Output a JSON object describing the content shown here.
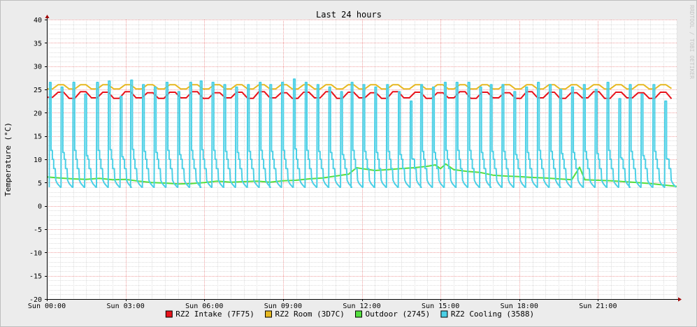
{
  "chart_data": {
    "type": "line",
    "title": "Last 24 hours",
    "ylabel": "Temperature (°C)",
    "watermark": "RRDTOOL / TOBI OETIKER",
    "ylim": [
      -20,
      40
    ],
    "y_major_ticks": [
      40,
      35,
      30,
      25,
      20,
      15,
      10,
      5,
      0,
      -5,
      -10,
      -15,
      -20
    ],
    "y_minor_step": 1,
    "x_hours_range": [
      0,
      24
    ],
    "x_major_ticks": [
      {
        "hour": 0,
        "label": "Sun 00:00"
      },
      {
        "hour": 3,
        "label": "Sun 03:00"
      },
      {
        "hour": 6,
        "label": "Sun 06:00"
      },
      {
        "hour": 9,
        "label": "Sun 09:00"
      },
      {
        "hour": 12,
        "label": "Sun 12:00"
      },
      {
        "hour": 15,
        "label": "Sun 15:00"
      },
      {
        "hour": 18,
        "label": "Sun 18:00"
      },
      {
        "hour": 21,
        "label": "Sun 21:00"
      }
    ],
    "x_minor_step_minutes": 30,
    "legend_position": "bottom",
    "grid": true,
    "series": [
      {
        "name": "RZ2 Intake (7F75)",
        "color": "#e8121a",
        "x": [
          0.0,
          0.43,
          0.85,
          1.28,
          1.7,
          2.13,
          2.55,
          2.98,
          3.4,
          3.83,
          4.25,
          4.68,
          5.1,
          5.53,
          5.95,
          6.38,
          6.8,
          7.23,
          7.65,
          8.08,
          8.5,
          8.93,
          9.35,
          9.78,
          10.2,
          10.63,
          11.05,
          11.48,
          11.9,
          12.33,
          12.75,
          13.18,
          13.6,
          14.03,
          14.45,
          14.88,
          15.3,
          15.73,
          16.15,
          16.58,
          17.0,
          17.43,
          17.85,
          18.28,
          18.7,
          19.13,
          19.55,
          19.98,
          20.4,
          20.83,
          21.25,
          21.68,
          22.1,
          22.53,
          22.95,
          23.38,
          23.8
        ],
        "y": [
          23.3,
          24.4,
          23.1,
          24.5,
          23.2,
          24.4,
          23.1,
          24.5,
          23.2,
          24.3,
          23.1,
          24.4,
          23.2,
          24.5,
          23.1,
          24.3,
          23.2,
          24.4,
          23.1,
          24.5,
          23.2,
          24.3,
          23.1,
          24.4,
          23.2,
          24.5,
          23.1,
          24.4,
          23.2,
          24.3,
          23.1,
          24.5,
          23.2,
          24.4,
          23.1,
          24.3,
          23.2,
          24.5,
          23.1,
          24.4,
          23.2,
          24.3,
          23.1,
          24.5,
          23.2,
          24.4,
          23.1,
          24.3,
          23.2,
          24.5,
          23.1,
          24.4,
          23.2,
          24.3,
          23.1,
          24.4,
          23.0
        ]
      },
      {
        "name": "RZ2 Room (3D7C)",
        "color": "#e6b820",
        "x": [
          0.0,
          0.43,
          0.85,
          1.28,
          1.7,
          2.13,
          2.55,
          2.98,
          3.4,
          3.83,
          4.25,
          4.68,
          5.1,
          5.53,
          5.95,
          6.38,
          6.8,
          7.23,
          7.65,
          8.08,
          8.5,
          8.93,
          9.35,
          9.78,
          10.2,
          10.63,
          11.05,
          11.48,
          11.9,
          12.33,
          12.75,
          13.18,
          13.6,
          14.03,
          14.45,
          14.88,
          15.3,
          15.73,
          16.15,
          16.58,
          17.0,
          17.43,
          17.85,
          18.28,
          18.7,
          19.13,
          19.55,
          19.98,
          20.4,
          20.83,
          21.25,
          21.68,
          22.1,
          22.53,
          22.95,
          23.38,
          23.8
        ],
        "y": [
          25.1,
          26.0,
          25.1,
          26.0,
          25.1,
          26.0,
          25.1,
          26.0,
          25.1,
          26.0,
          25.1,
          26.0,
          25.1,
          26.0,
          25.1,
          26.0,
          25.1,
          26.0,
          25.1,
          26.0,
          25.1,
          26.0,
          25.1,
          26.0,
          25.1,
          26.0,
          25.1,
          26.0,
          25.1,
          26.0,
          25.1,
          26.0,
          25.1,
          26.0,
          25.1,
          26.0,
          25.1,
          26.0,
          25.1,
          26.0,
          25.1,
          26.0,
          25.1,
          26.0,
          25.1,
          26.0,
          25.1,
          26.0,
          25.1,
          26.0,
          25.1,
          26.0,
          25.1,
          26.0,
          25.1,
          26.0,
          25.2
        ]
      },
      {
        "name": "Outdoor (2745)",
        "color": "#54e03e",
        "x": [
          0.0,
          0.5,
          1.0,
          1.5,
          2.0,
          2.5,
          3.0,
          3.5,
          4.0,
          4.5,
          5.0,
          5.5,
          6.0,
          6.5,
          7.0,
          7.5,
          8.0,
          8.5,
          9.0,
          9.5,
          10.0,
          10.5,
          11.0,
          11.5,
          11.8,
          12.0,
          12.5,
          13.0,
          13.5,
          14.0,
          14.5,
          14.8,
          15.0,
          15.2,
          15.5,
          16.0,
          16.5,
          17.0,
          17.5,
          18.0,
          18.5,
          19.0,
          19.5,
          20.0,
          20.3,
          20.5,
          21.0,
          21.5,
          22.0,
          22.5,
          23.0,
          23.5,
          24.0
        ],
        "y": [
          6.2,
          6.0,
          5.8,
          5.7,
          5.9,
          5.6,
          5.7,
          5.3,
          5.0,
          4.9,
          4.7,
          4.8,
          5.0,
          5.3,
          5.1,
          5.2,
          5.3,
          5.1,
          5.4,
          5.5,
          5.8,
          6.0,
          6.4,
          6.8,
          8.2,
          8.0,
          7.6,
          7.8,
          8.0,
          8.2,
          8.5,
          8.8,
          8.0,
          9.0,
          7.8,
          7.4,
          7.2,
          6.6,
          6.4,
          6.3,
          6.1,
          6.0,
          5.8,
          5.6,
          8.3,
          5.6,
          5.5,
          5.4,
          5.2,
          5.0,
          4.8,
          4.5,
          4.2
        ]
      },
      {
        "name": "RZ2 Cooling (3588)",
        "color": "#4bd0e6",
        "cycle_starts_hours": [
          0.1,
          0.55,
          1.0,
          1.45,
          1.9,
          2.35,
          2.8,
          3.2,
          3.65,
          4.1,
          4.55,
          5.0,
          5.45,
          5.85,
          6.3,
          6.75,
          7.2,
          7.65,
          8.1,
          8.5,
          8.95,
          9.4,
          9.85,
          10.3,
          10.75,
          11.2,
          11.6,
          12.05,
          12.5,
          12.95,
          13.4,
          13.85,
          14.25,
          14.7,
          15.15,
          15.6,
          16.05,
          16.5,
          16.9,
          17.35,
          17.8,
          18.25,
          18.7,
          19.15,
          19.55,
          20.0,
          20.45,
          20.9,
          21.35,
          21.8,
          22.2,
          22.65,
          23.1,
          23.55
        ],
        "cycle_peaks": [
          26.5,
          25.5,
          26.5,
          24.0,
          26.5,
          26.8,
          23.5,
          27.0,
          26.0,
          25.5,
          26.5,
          24.5,
          26.5,
          26.8,
          26.5,
          26.0,
          25.5,
          26.0,
          26.5,
          26.0,
          26.5,
          27.2,
          26.5,
          26.0,
          25.5,
          24.5,
          26.5,
          26.0,
          25.5,
          26.0,
          24.5,
          22.5,
          26.0,
          25.5,
          26.5,
          26.5,
          26.5,
          25.5,
          26.0,
          26.0,
          24.5,
          25.5,
          26.5,
          26.0,
          25.0,
          25.5,
          26.0,
          25.0,
          26.5,
          23.0,
          26.0,
          24.0,
          26.0,
          22.5
        ],
        "baseline_low": 4.0,
        "plateau": 8.0
      }
    ]
  }
}
